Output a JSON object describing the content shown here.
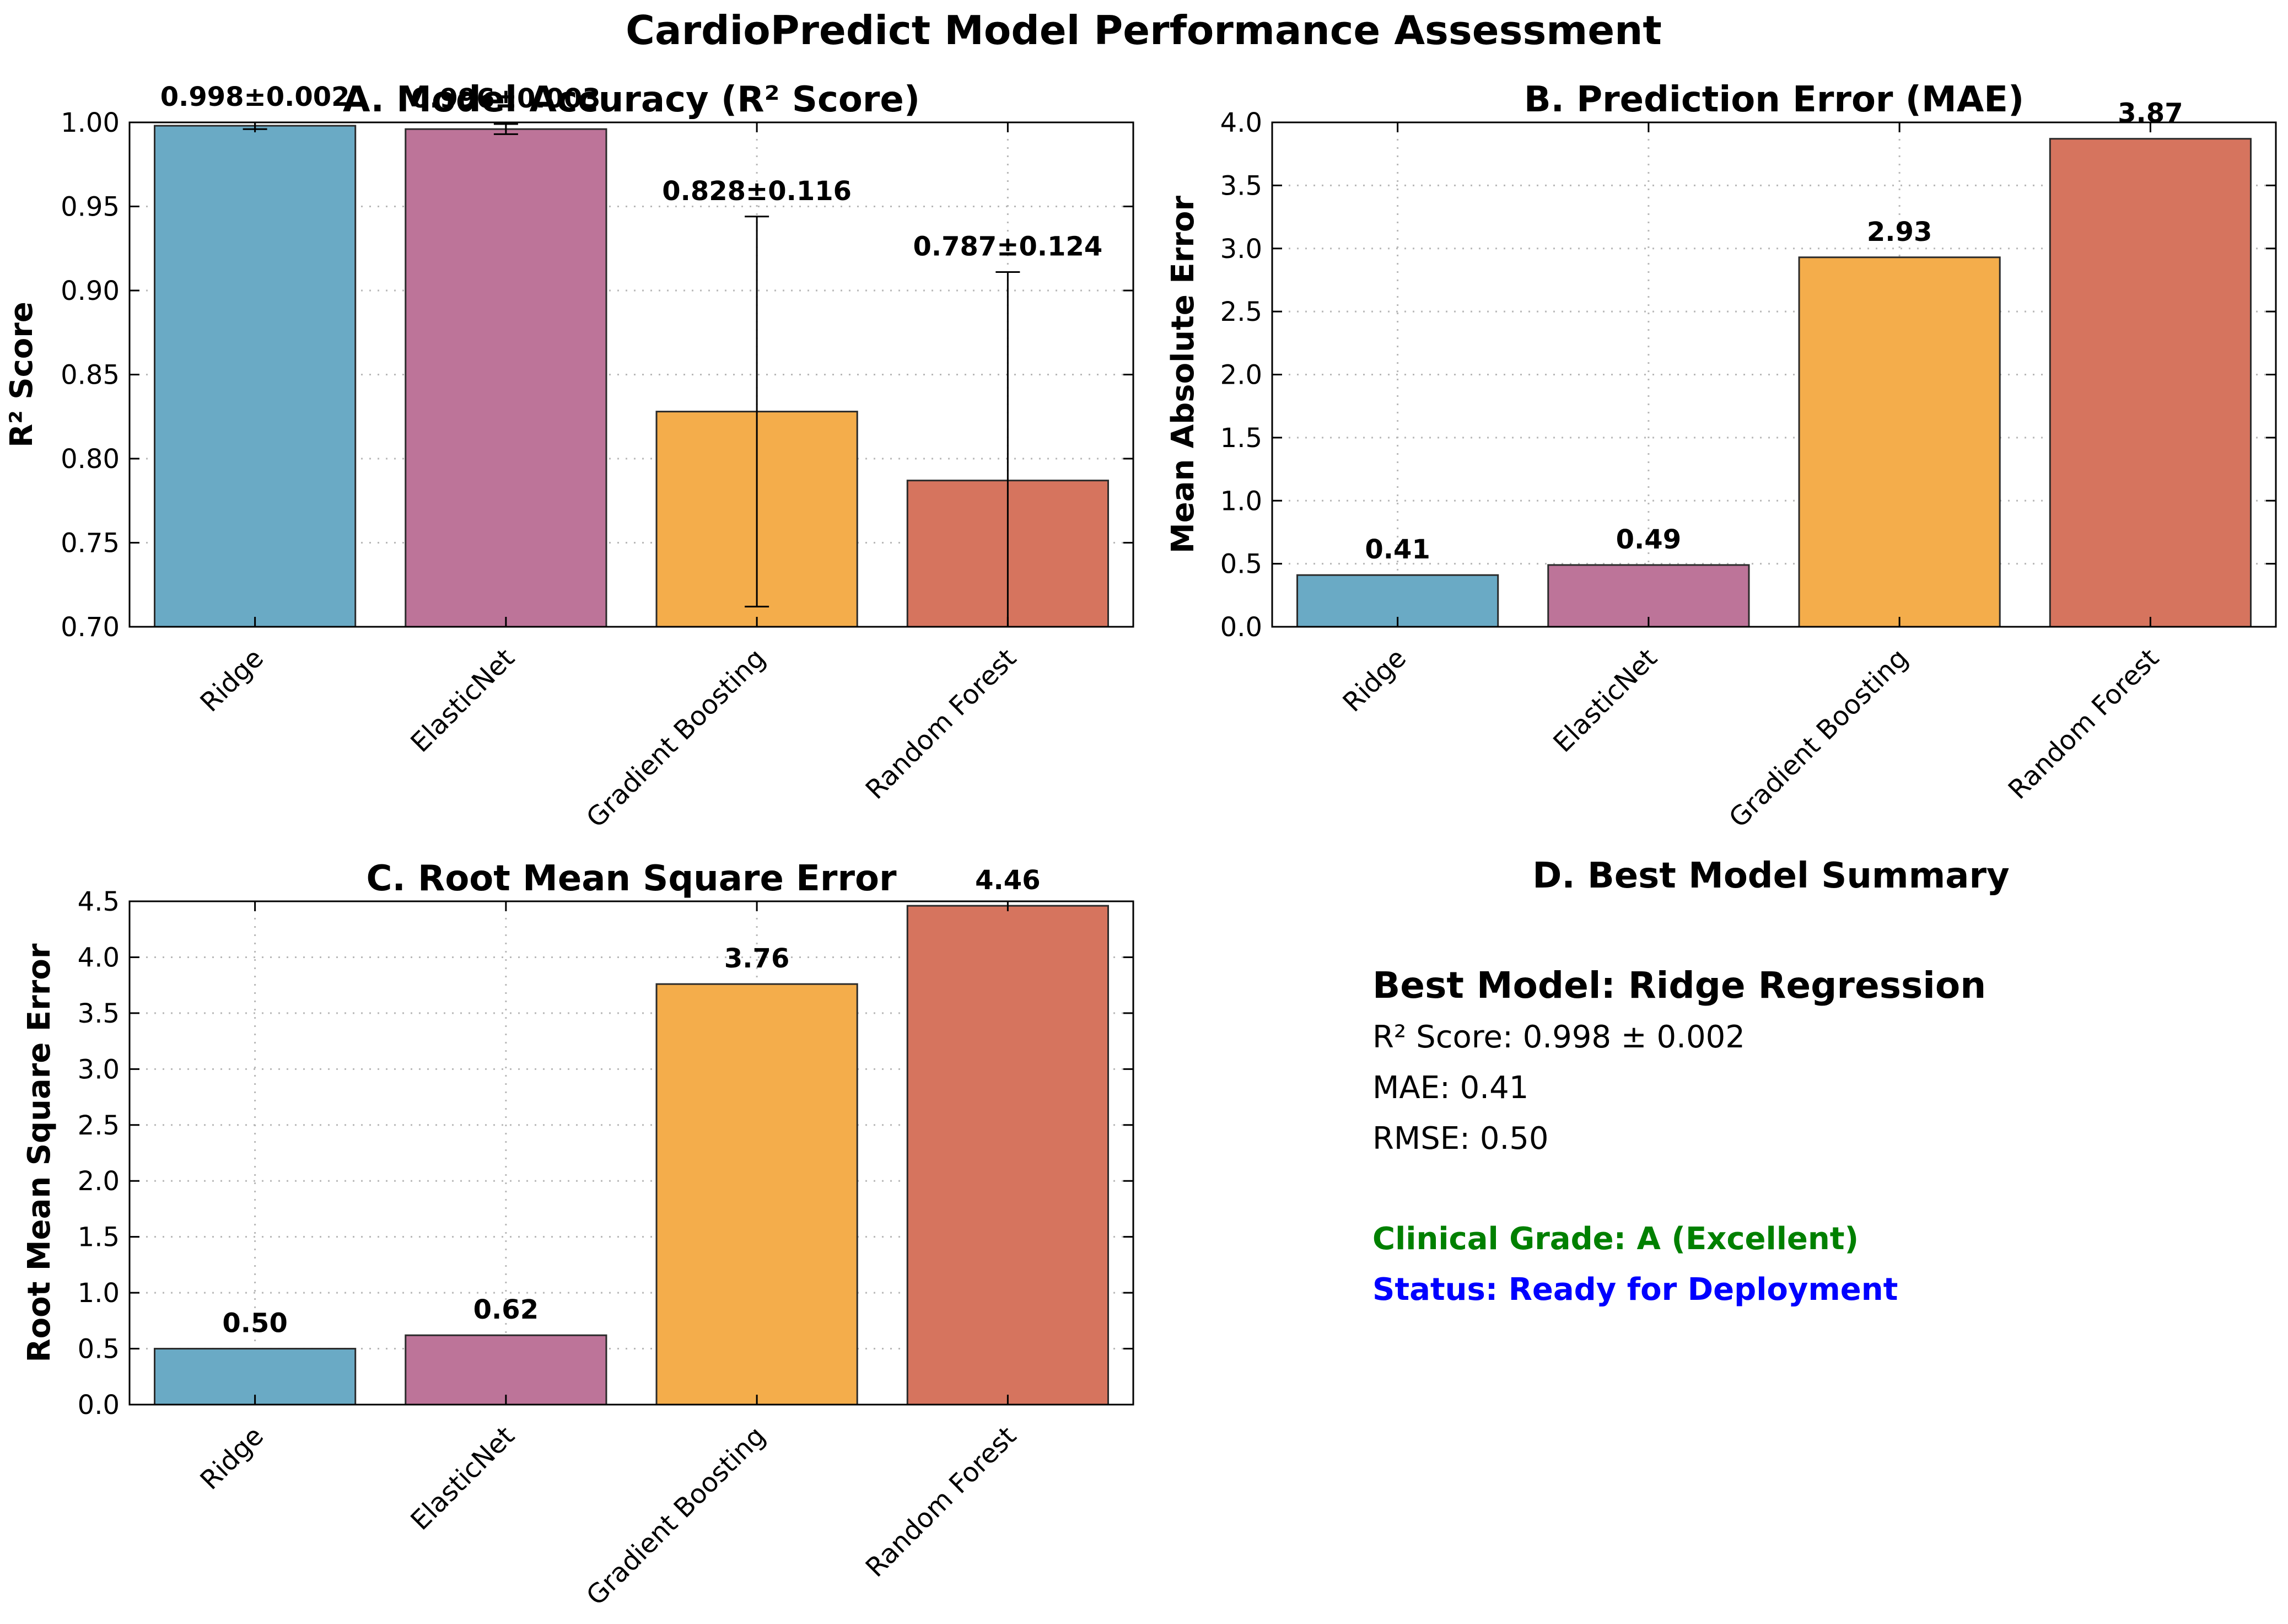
{
  "figure_title": "CardioPredict Model Performance Assessment",
  "colors": {
    "Ridge": "#6aaac5",
    "ElasticNet": "#bd7499",
    "Gradient Boosting": "#f4ad4b",
    "Random Forest": "#d6745e",
    "grade_text": "#008000",
    "status_text": "#0000ff"
  },
  "chart_data": [
    {
      "type": "bar",
      "title": "A. Model Accuracy (R² Score)",
      "xlabel": "",
      "ylabel": "R² Score",
      "categories": [
        "Ridge",
        "ElasticNet",
        "Gradient Boosting",
        "Random Forest"
      ],
      "values": [
        0.998,
        0.996,
        0.828,
        0.787
      ],
      "errors": [
        0.002,
        0.003,
        0.116,
        0.124
      ],
      "data_labels": [
        "0.998±0.002",
        "0.996±0.003",
        "0.828±0.116",
        "0.787±0.124"
      ],
      "ylim": [
        0.7,
        1.0
      ],
      "yticks": [
        0.7,
        0.75,
        0.8,
        0.85,
        0.9,
        0.95,
        1.0
      ],
      "ytick_labels": [
        "0.70",
        "0.75",
        "0.80",
        "0.85",
        "0.90",
        "0.95",
        "1.00"
      ],
      "grid": true
    },
    {
      "type": "bar",
      "title": "B. Prediction Error (MAE)",
      "xlabel": "",
      "ylabel": "Mean Absolute Error",
      "categories": [
        "Ridge",
        "ElasticNet",
        "Gradient Boosting",
        "Random Forest"
      ],
      "values": [
        0.41,
        0.49,
        2.93,
        3.87
      ],
      "data_labels": [
        "0.41",
        "0.49",
        "2.93",
        "3.87"
      ],
      "ylim": [
        0.0,
        4.0
      ],
      "yticks": [
        0.0,
        0.5,
        1.0,
        1.5,
        2.0,
        2.5,
        3.0,
        3.5,
        4.0
      ],
      "ytick_labels": [
        "0.0",
        "0.5",
        "1.0",
        "1.5",
        "2.0",
        "2.5",
        "3.0",
        "3.5",
        "4.0"
      ],
      "grid": true
    },
    {
      "type": "bar",
      "title": "C. Root Mean Square Error",
      "xlabel": "",
      "ylabel": "Root Mean Square Error",
      "categories": [
        "Ridge",
        "ElasticNet",
        "Gradient Boosting",
        "Random Forest"
      ],
      "values": [
        0.5,
        0.62,
        3.76,
        4.46
      ],
      "data_labels": [
        "0.50",
        "0.62",
        "3.76",
        "4.46"
      ],
      "ylim": [
        0.0,
        4.5
      ],
      "yticks": [
        0.0,
        0.5,
        1.0,
        1.5,
        2.0,
        2.5,
        3.0,
        3.5,
        4.0,
        4.5
      ],
      "ytick_labels": [
        "0.0",
        "0.5",
        "1.0",
        "1.5",
        "2.0",
        "2.5",
        "3.0",
        "3.5",
        "4.0",
        "4.5"
      ],
      "grid": true
    }
  ],
  "summary": {
    "title": "D. Best Model Summary",
    "best_model": "Best Model: Ridge Regression",
    "r2": "R² Score: 0.998 ± 0.002",
    "mae": "MAE: 0.41",
    "rmse": "RMSE: 0.50",
    "grade": "Clinical Grade: A (Excellent)",
    "status": "Status: Ready for Deployment"
  }
}
